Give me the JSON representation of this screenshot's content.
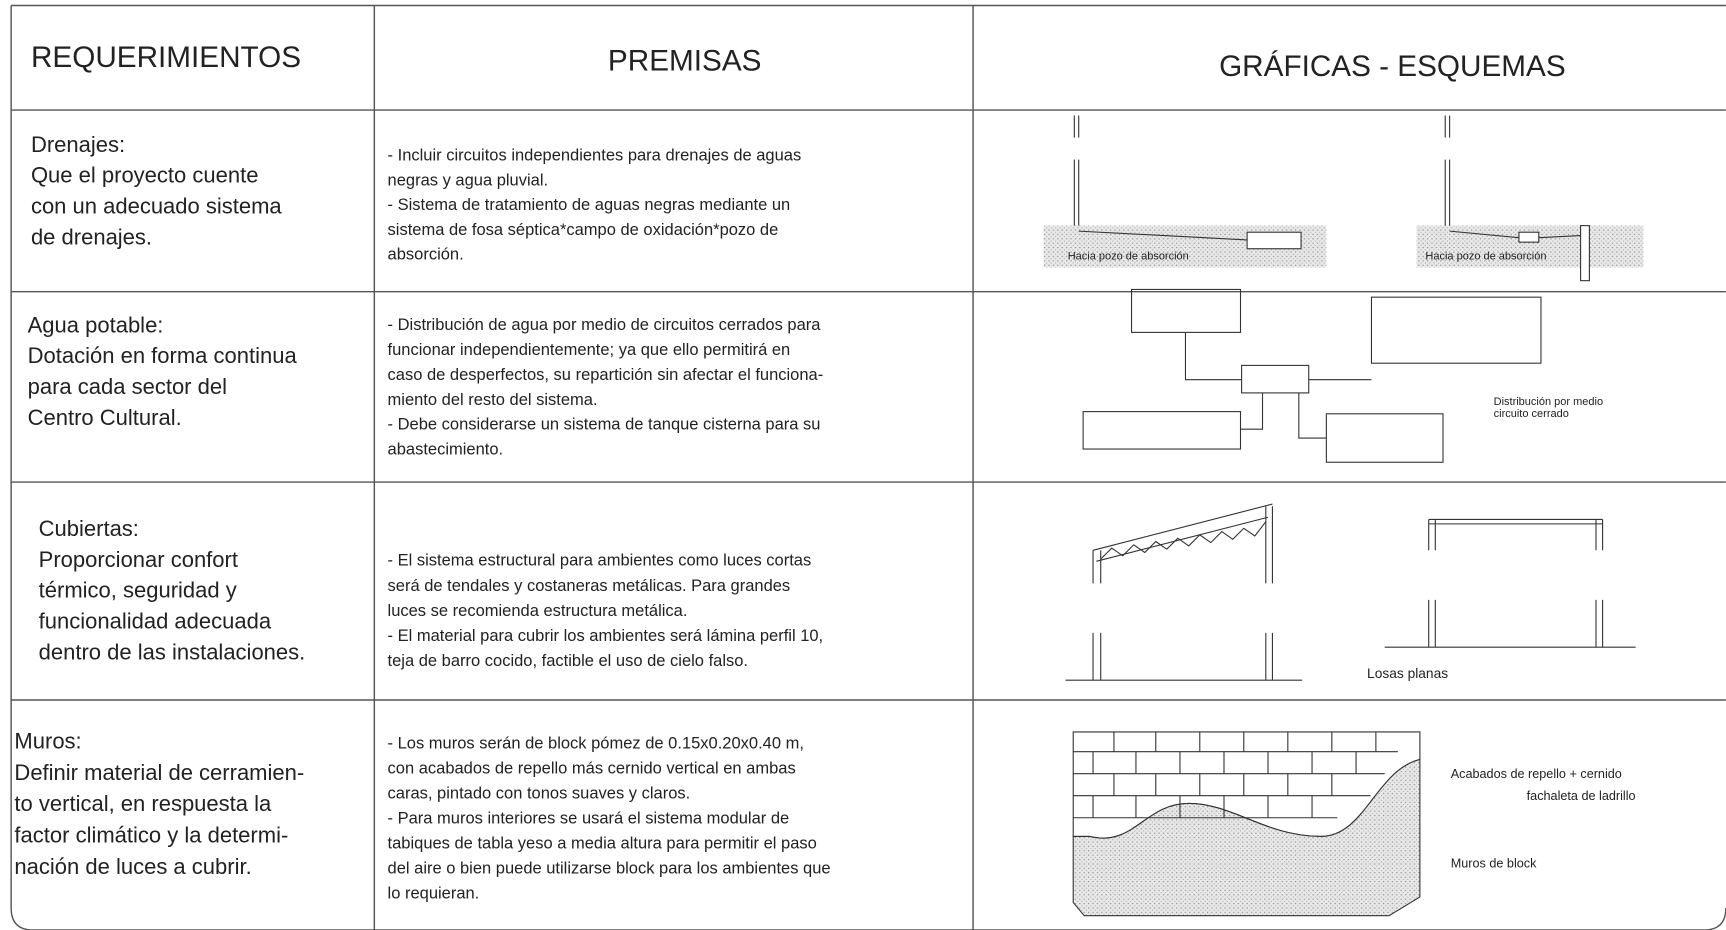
{
  "header": {
    "columns": [
      "REQUERIMIENTOS",
      "PREMISAS",
      "GRÁFICAS - ESQUEMAS"
    ]
  },
  "rows": [
    {
      "requirement": [
        "Drenajes:",
        "Que el proyecto cuente",
        "con un adecuado sistema",
        "de drenajes."
      ],
      "premises": [
        "- Incluir circuitos independientes para drenajes de aguas",
        "negras y agua pluvial.",
        "- Sistema de tratamiento de aguas negras mediante un",
        "sistema de fosa séptica*campo de oxidación*pozo de",
        "absorción."
      ],
      "diagram_labels": [
        "Hacia pozo de absorción",
        "Hacia pozo de absorción"
      ]
    },
    {
      "requirement": [
        "Agua potable:",
        "Dotación en forma continua",
        "para cada sector del",
        "Centro Cultural."
      ],
      "premises": [
        "- Distribución de agua por medio de circuitos cerrados para",
        "funcionar independientemente; ya que ello permitirá en",
        "caso de desperfectos, su repartición sin afectar el funciona-",
        "miento del resto del sistema.",
        "- Debe considerarse un sistema de tanque cisterna para su",
        "abastecimiento."
      ],
      "diagram_labels": [
        "Distribución por medio",
        "circuito cerrado"
      ]
    },
    {
      "requirement": [
        "Cubiertas:",
        "Proporcionar confort",
        "térmico, seguridad y",
        "funcionalidad adecuada",
        "dentro de las instalaciones."
      ],
      "premises": [
        "- El sistema estructural para ambientes como luces cortas",
        "será de tendales y costaneras metálicas. Para grandes",
        "luces se recomienda estructura metálica.",
        "- El material para cubrir los ambientes será lámina perfil 10,",
        "teja de barro cocido, factible el uso de cielo falso."
      ],
      "diagram_labels": [
        "Losas planas"
      ]
    },
    {
      "requirement": [
        "Muros:",
        "Definir material de cerramien-",
        "to vertical, en respuesta la",
        "factor climático y la determi-",
        "nación de luces a cubrir."
      ],
      "premises": [
        "- Los muros serán de block pómez de 0.15x0.20x0.40 m,",
        "con acabados de repello más cernido vertical en ambas",
        "caras, pintado con tonos suaves y claros.",
        "- Para muros interiores se usará el sistema modular de",
        "tabiques de tabla yeso a media altura para permitir el paso",
        "del aire o bien puede utilizarse block para los ambientes que",
        "lo requieran."
      ],
      "diagram_labels": [
        "Acabados de repello + cernido",
        "fachaleta de ladrillo",
        "Muros de block"
      ]
    }
  ]
}
